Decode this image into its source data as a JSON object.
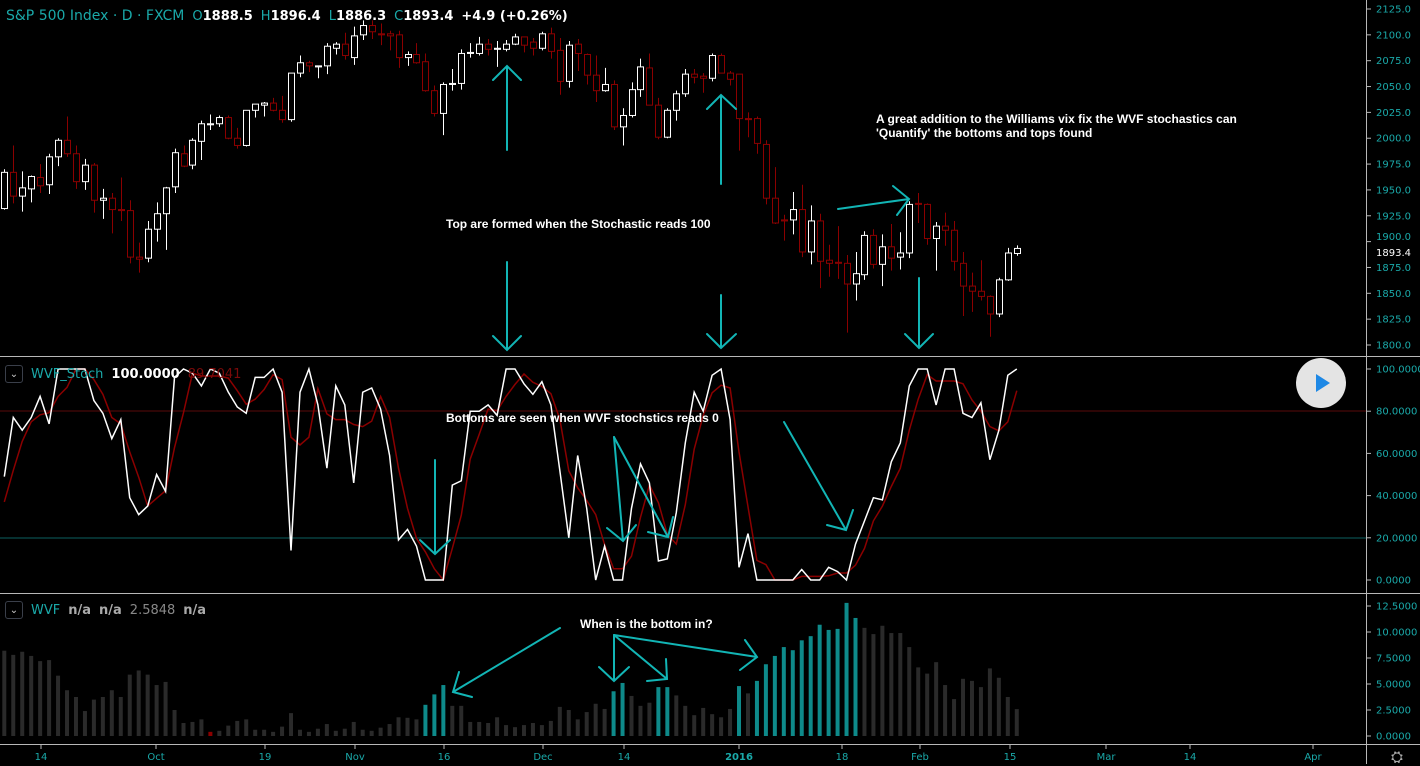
{
  "header": {
    "symbol": "S&P 500 Index · D · FXCM",
    "open_label": "O",
    "open": "1888.5",
    "high_label": "H",
    "high": "1896.4",
    "low_label": "L",
    "low": "1886.3",
    "close_label": "C",
    "close": "1893.4",
    "change": "+4.9 (+0.26%)"
  },
  "colors": {
    "background": "#000000",
    "up_candle": "#ffffff",
    "down_candle": "#8b0000",
    "accent": "#1aa9a9",
    "wvf_gray": "#2a2a2a",
    "wvf_teal": "#0e8a8a",
    "wvf_red": "#8b0000",
    "annotation": "#12b5b5"
  },
  "stoch_legend": {
    "name": "WVF_Stoch",
    "k_value": "100.0000",
    "d_value": "89.7041"
  },
  "wvf_legend": {
    "name": "WVF",
    "v1": "n/a",
    "v2": "n/a",
    "v3": "2.5848",
    "v4": "n/a"
  },
  "annotations": {
    "tops": "Top are formed when the Stochastic reads 100",
    "bottoms": "Bottoms are seen when WVF stochstics reads 0",
    "bottom_question": "When is the bottom in?",
    "addition_line1": "A great addition to the Williams vix fix the WVF stochastics can",
    "addition_line2": "'Quantify' the bottoms and tops found"
  },
  "controls": {
    "play_icon": "play-icon",
    "settings_icon": "gear-icon"
  },
  "chart_data": [
    {
      "type": "candlestick",
      "title": "S&P 500 Index",
      "timeframe": "D",
      "ylim": [
        1800,
        2125
      ],
      "y_ticks": [
        "2125.0",
        "2100.0",
        "2075.0",
        "2050.0",
        "2025.0",
        "2000.0",
        "1975.0",
        "1950.0",
        "1925.0",
        "1900.0",
        "1875.0",
        "1850.0",
        "1825.0",
        "1800.0"
      ],
      "last_price_label": "1893.4",
      "x_ticks": [
        "14",
        "Oct",
        "19",
        "Nov",
        "16",
        "Dec",
        "14",
        "2016",
        "18",
        "Feb",
        "15",
        "Mar",
        "14",
        "Apr"
      ],
      "ohlc": [
        [
          1932,
          1970,
          1931,
          1967
        ],
        [
          1967,
          1993,
          1937,
          1944
        ],
        [
          1944,
          1968,
          1929,
          1952
        ],
        [
          1951,
          1964,
          1938,
          1963
        ],
        [
          1962,
          1975,
          1947,
          1954
        ],
        [
          1955,
          1985,
          1946,
          1982
        ],
        [
          1982,
          2000,
          1973,
          1998
        ],
        [
          1998,
          2021,
          1982,
          1985
        ],
        [
          1985,
          1993,
          1951,
          1958
        ],
        [
          1958,
          1980,
          1950,
          1974
        ],
        [
          1974,
          1976,
          1928,
          1940
        ],
        [
          1940,
          1951,
          1922,
          1942
        ],
        [
          1942,
          1947,
          1908,
          1931
        ],
        [
          1931,
          1962,
          1920,
          1930
        ],
        [
          1930,
          1940,
          1879,
          1885
        ],
        [
          1885,
          1899,
          1870,
          1883
        ],
        [
          1884,
          1920,
          1880,
          1912
        ],
        [
          1912,
          1938,
          1900,
          1927
        ],
        [
          1927,
          1953,
          1892,
          1952
        ],
        [
          1953,
          1990,
          1947,
          1986
        ],
        [
          1985,
          1993,
          1972,
          1973
        ],
        [
          1974,
          2000,
          1970,
          1998
        ],
        [
          1997,
          2017,
          1979,
          2014
        ],
        [
          2013,
          2023,
          2008,
          2014
        ],
        [
          2014,
          2022,
          2011,
          2020
        ],
        [
          2020,
          2022,
          1999,
          2000
        ],
        [
          2000,
          2010,
          1990,
          1993
        ],
        [
          1993,
          2027,
          1992,
          2027
        ],
        [
          2027,
          2033,
          2020,
          2033
        ],
        [
          2032,
          2035,
          2021,
          2034
        ],
        [
          2034,
          2039,
          2026,
          2027
        ],
        [
          2027,
          2041,
          2015,
          2018
        ],
        [
          2018,
          2063,
          2016,
          2063
        ],
        [
          2063,
          2080,
          2059,
          2073
        ],
        [
          2073,
          2075,
          2064,
          2070
        ],
        [
          2069,
          2070,
          2058,
          2070
        ],
        [
          2070,
          2092,
          2062,
          2089
        ],
        [
          2087,
          2093,
          2081,
          2091
        ],
        [
          2091,
          2102,
          2076,
          2080
        ],
        [
          2078,
          2108,
          2071,
          2099
        ],
        [
          2100,
          2114,
          2095,
          2109
        ],
        [
          2109,
          2114,
          2096,
          2103
        ],
        [
          2101,
          2111,
          2090,
          2100
        ],
        [
          2101,
          2104,
          2085,
          2099
        ],
        [
          2100,
          2104,
          2068,
          2078
        ],
        [
          2078,
          2084,
          2070,
          2081
        ],
        [
          2081,
          2092,
          2072,
          2073
        ],
        [
          2074,
          2082,
          2045,
          2046
        ],
        [
          2046,
          2051,
          2021,
          2024
        ],
        [
          2024,
          2054,
          2003,
          2052
        ],
        [
          2052,
          2067,
          2046,
          2053
        ],
        [
          2053,
          2086,
          2047,
          2082
        ],
        [
          2082,
          2092,
          2078,
          2083
        ],
        [
          2082,
          2098,
          2080,
          2091
        ],
        [
          2091,
          2096,
          2080,
          2086
        ],
        [
          2086,
          2094,
          2069,
          2087
        ],
        [
          2086,
          2095,
          2084,
          2091
        ],
        [
          2091,
          2101,
          2090,
          2098
        ],
        [
          2098,
          2098,
          2083,
          2090
        ],
        [
          2093,
          2097,
          2080,
          2087
        ],
        [
          2087,
          2103,
          2085,
          2101
        ],
        [
          2101,
          2107,
          2077,
          2084
        ],
        [
          2085,
          2097,
          2042,
          2055
        ],
        [
          2055,
          2094,
          2049,
          2090
        ],
        [
          2091,
          2096,
          2065,
          2082
        ],
        [
          2081,
          2082,
          2052,
          2061
        ],
        [
          2061,
          2080,
          2035,
          2046
        ],
        [
          2046,
          2068,
          2045,
          2052
        ],
        [
          2052,
          2056,
          2008,
          2011
        ],
        [
          2011,
          2029,
          1993,
          2022
        ],
        [
          2022,
          2054,
          2020,
          2047
        ],
        [
          2047,
          2077,
          2040,
          2069
        ],
        [
          2068,
          2082,
          2032,
          2032
        ],
        [
          2032,
          2039,
          1999,
          2001
        ],
        [
          2001,
          2029,
          2000,
          2027
        ],
        [
          2027,
          2046,
          2017,
          2043
        ],
        [
          2043,
          2067,
          2040,
          2062
        ],
        [
          2062,
          2067,
          2053,
          2059
        ],
        [
          2060,
          2063,
          2044,
          2058
        ],
        [
          2058,
          2082,
          2055,
          2080
        ],
        [
          2080,
          2082,
          2063,
          2063
        ],
        [
          2063,
          2065,
          2051,
          2057
        ],
        [
          2062,
          2062,
          1988,
          2019
        ],
        [
          2019,
          2025,
          2001,
          2018
        ],
        [
          2019,
          2021,
          1985,
          1995
        ],
        [
          1994,
          1998,
          1936,
          1942
        ],
        [
          1942,
          1972,
          1917,
          1918
        ],
        [
          1921,
          1926,
          1901,
          1920
        ],
        [
          1921,
          1948,
          1907,
          1931
        ],
        [
          1931,
          1955,
          1885,
          1890
        ],
        [
          1890,
          1935,
          1878,
          1920
        ],
        [
          1920,
          1927,
          1855,
          1881
        ],
        [
          1882,
          1897,
          1866,
          1879
        ],
        [
          1880,
          1915,
          1864,
          1879
        ],
        [
          1879,
          1887,
          1812,
          1859
        ],
        [
          1859,
          1890,
          1843,
          1869
        ],
        [
          1868,
          1910,
          1863,
          1906
        ],
        [
          1906,
          1912,
          1874,
          1878
        ],
        [
          1878,
          1907,
          1857,
          1895
        ],
        [
          1895,
          1917,
          1872,
          1884
        ],
        [
          1885,
          1909,
          1873,
          1889
        ],
        [
          1889,
          1939,
          1884,
          1936
        ],
        [
          1937,
          1947,
          1918,
          1936
        ],
        [
          1936,
          1937,
          1897,
          1903
        ],
        [
          1903,
          1919,
          1872,
          1915
        ],
        [
          1915,
          1928,
          1896,
          1911
        ],
        [
          1911,
          1920,
          1872,
          1881
        ],
        [
          1879,
          1890,
          1828,
          1857
        ],
        [
          1857,
          1870,
          1832,
          1852
        ],
        [
          1852,
          1882,
          1843,
          1847
        ],
        [
          1847,
          1848,
          1808,
          1830
        ],
        [
          1830,
          1865,
          1827,
          1863
        ],
        [
          1863,
          1894,
          1862,
          1889
        ],
        [
          1888.5,
          1896.4,
          1886.3,
          1893.4
        ]
      ]
    },
    {
      "type": "line",
      "title": "WVF_Stoch",
      "ylim": [
        0,
        100
      ],
      "y_ticks": [
        "100.0000",
        "80.0000",
        "60.0000",
        "40.0000",
        "20.0000",
        "0.0000"
      ],
      "levels": [
        80,
        20
      ],
      "series": [
        {
          "color": "#ffffff",
          "values": [
            49,
            77,
            71,
            77,
            87,
            74,
            100,
            100,
            100,
            100,
            85,
            79,
            67,
            76,
            39,
            31,
            35,
            50,
            42,
            96,
            100,
            98,
            92,
            100,
            98,
            89,
            82,
            79,
            96,
            96,
            100,
            89,
            14,
            89,
            100,
            83,
            53,
            92,
            83,
            46,
            89,
            91,
            81,
            59,
            19,
            24,
            16,
            0,
            0,
            0,
            45,
            47,
            80,
            80,
            83,
            78,
            100,
            100,
            93,
            88,
            94,
            83,
            52,
            20,
            59,
            34,
            0,
            16,
            0,
            0,
            34,
            55,
            46,
            9,
            10,
            32,
            65,
            89,
            80,
            97,
            100,
            76,
            6,
            22,
            0,
            0,
            0,
            0,
            0,
            5,
            0,
            0,
            6,
            4,
            0,
            17,
            28,
            39,
            38,
            56,
            65,
            92,
            100,
            100,
            83,
            100,
            100,
            79,
            77,
            84,
            57,
            71,
            97,
            100
          ]
        },
        {
          "color": "#8b0000",
          "values": [
            37,
            52,
            65.7,
            75,
            78.3,
            79.3,
            87,
            91.3,
            100,
            100,
            95,
            88,
            77,
            74,
            60.7,
            48.7,
            35,
            38.7,
            42.3,
            62.7,
            79.3,
            98,
            96.7,
            96.7,
            96.7,
            95.7,
            89.7,
            83.3,
            85.7,
            90.3,
            97.3,
            95,
            67.7,
            64,
            67.7,
            90.7,
            78.7,
            76,
            76,
            73.7,
            72.7,
            75.3,
            87,
            77,
            53,
            34,
            19.7,
            13.3,
            5.3,
            0,
            15,
            30.7,
            57.3,
            69,
            81,
            80.3,
            87,
            92.7,
            97.7,
            93.7,
            91.7,
            88.3,
            76.3,
            51.7,
            43.7,
            37.7,
            31,
            16.7,
            5.3,
            5.3,
            11.3,
            29.7,
            45,
            36.7,
            21.7,
            17,
            35.7,
            62,
            78,
            88.7,
            92.3,
            91,
            60.7,
            34.7,
            9.3,
            7.3,
            0,
            0,
            0,
            1.7,
            1.7,
            1.7,
            2,
            3.3,
            3.3,
            7,
            15,
            28,
            35,
            44.3,
            53,
            71,
            85.7,
            97.3,
            94.3,
            94.3,
            94.3,
            93,
            85.3,
            80,
            72.7,
            70.7,
            75,
            89.7041
          ]
        }
      ]
    },
    {
      "type": "bar",
      "title": "WVF",
      "ylim": [
        0,
        12.5
      ],
      "y_ticks": [
        "12.5000",
        "10.0000",
        "7.5000",
        "5.0000",
        "2.5000",
        "0.0000"
      ],
      "values": [
        8.2,
        7.8,
        8.1,
        7.7,
        7.2,
        7.3,
        5.8,
        4.4,
        3.75,
        2.4,
        3.5,
        3.75,
        4.4,
        3.75,
        5.9,
        6.3,
        5.9,
        4.9,
        5.2,
        2.5,
        1.25,
        1.35,
        1.6,
        0.4,
        0.5,
        1.0,
        1.45,
        1.6,
        0.6,
        0.6,
        0.4,
        0.9,
        2.2,
        0.6,
        0.4,
        0.7,
        1.15,
        0.5,
        0.7,
        1.35,
        0.6,
        0.5,
        0.8,
        1.15,
        1.8,
        1.75,
        1.6,
        3.0,
        4.0,
        4.9,
        2.9,
        2.9,
        1.35,
        1.35,
        1.25,
        1.8,
        1.05,
        0.85,
        1.05,
        1.25,
        1.05,
        1.45,
        2.8,
        2.5,
        1.6,
        2.3,
        3.1,
        2.6,
        4.3,
        5.1,
        3.85,
        2.9,
        3.2,
        4.7,
        4.7,
        3.9,
        2.9,
        2.0,
        2.7,
        2.1,
        1.8,
        2.6,
        4.8,
        4.1,
        5.3,
        6.9,
        7.7,
        8.55,
        8.25,
        9.2,
        9.6,
        10.7,
        10.2,
        10.3,
        12.8,
        11.35,
        10.4,
        9.8,
        10.6,
        9.9,
        9.9,
        8.55,
        6.6,
        6.0,
        7.1,
        4.9,
        3.55,
        5.5,
        5.3,
        4.7,
        6.5,
        5.6,
        3.75,
        2.5848
      ],
      "bar_colors": [
        "g",
        "g",
        "g",
        "g",
        "g",
        "g",
        "g",
        "g",
        "g",
        "g",
        "g",
        "g",
        "g",
        "g",
        "g",
        "g",
        "g",
        "g",
        "g",
        "g",
        "g",
        "g",
        "g",
        "r",
        "g",
        "g",
        "g",
        "g",
        "g",
        "g",
        "g",
        "g",
        "g",
        "g",
        "g",
        "g",
        "g",
        "g",
        "g",
        "g",
        "g",
        "g",
        "g",
        "g",
        "g",
        "g",
        "g",
        "t",
        "t",
        "t",
        "g",
        "g",
        "g",
        "g",
        "g",
        "g",
        "g",
        "g",
        "g",
        "g",
        "g",
        "g",
        "g",
        "g",
        "g",
        "g",
        "g",
        "g",
        "t",
        "t",
        "g",
        "g",
        "g",
        "t",
        "t",
        "g",
        "g",
        "g",
        "g",
        "g",
        "g",
        "g",
        "t",
        "g",
        "t",
        "t",
        "t",
        "t",
        "t",
        "t",
        "t",
        "t",
        "t",
        "t",
        "t",
        "t",
        "g",
        "g",
        "g",
        "g",
        "g",
        "g",
        "g",
        "g",
        "g",
        "g",
        "g",
        "g",
        "g",
        "g",
        "g",
        "g",
        "g",
        "g"
      ]
    }
  ]
}
